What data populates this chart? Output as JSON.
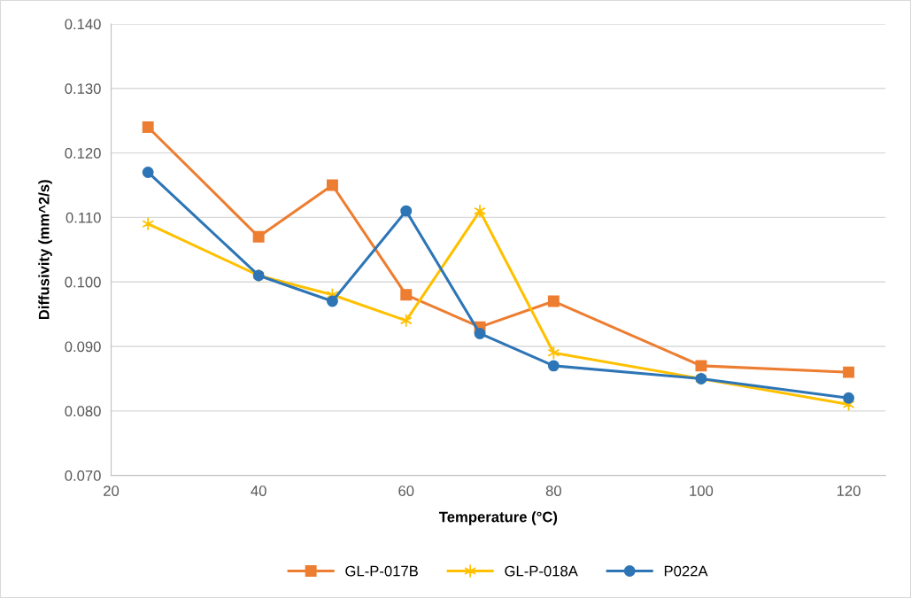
{
  "chart_data": {
    "type": "line",
    "xlabel": "Temperature (°C)",
    "ylabel": "Diffusivity (mm^2/s)",
    "x": [
      25,
      40,
      50,
      60,
      70,
      80,
      100,
      120
    ],
    "series": [
      {
        "name": "GL-P-017B",
        "color": "#ed7d31",
        "marker": "square",
        "values": [
          0.124,
          0.107,
          0.115,
          0.098,
          0.093,
          0.097,
          0.087,
          0.086
        ]
      },
      {
        "name": "GL-P-018A",
        "color": "#ffc000",
        "marker": "cross",
        "values": [
          0.109,
          0.101,
          0.098,
          0.094,
          0.111,
          0.089,
          0.085,
          0.081
        ]
      },
      {
        "name": "P022A",
        "color": "#2e75b6",
        "marker": "circle",
        "values": [
          0.117,
          0.101,
          0.097,
          0.111,
          0.092,
          0.087,
          0.085,
          0.082
        ]
      }
    ],
    "xlim": [
      20,
      125
    ],
    "xticks": [
      20,
      40,
      60,
      80,
      100,
      120
    ],
    "ylim": [
      0.07,
      0.14
    ],
    "yticks": [
      {
        "value": 0.07,
        "label": "0.070"
      },
      {
        "value": 0.08,
        "label": "0.080"
      },
      {
        "value": 0.09,
        "label": "0.090"
      },
      {
        "value": 0.1,
        "label": "0.100"
      },
      {
        "value": 0.11,
        "label": "0.110"
      },
      {
        "value": 0.12,
        "label": "0.120"
      },
      {
        "value": 0.13,
        "label": "0.130"
      },
      {
        "value": 0.14,
        "label": "0.140"
      }
    ],
    "grid": "y",
    "legend": "bottom",
    "line_style": "solid"
  }
}
